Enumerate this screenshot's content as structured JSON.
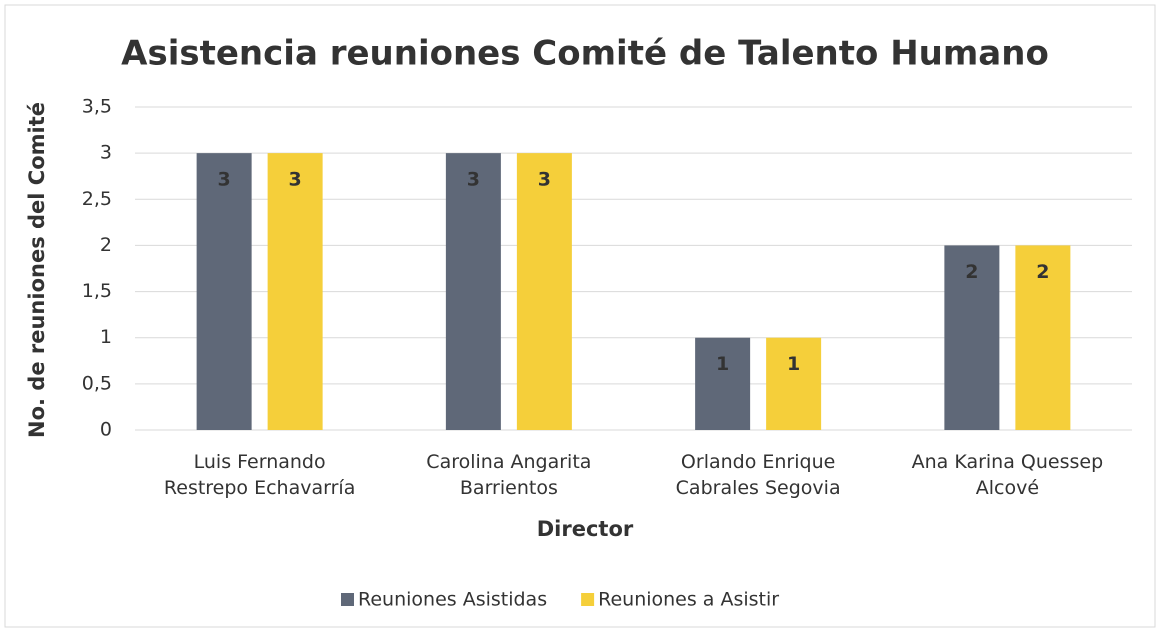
{
  "chart_data": {
    "type": "bar",
    "title": "Asistencia reuniones Comité de Talento Humano",
    "x_label": "Director",
    "y_label": "No. de reuniones del Comité",
    "categories": [
      "Luis Fernando Restrepo Echavarría",
      "Carolina Angarita Barrientos",
      "Orlando Enrique Cabrales Segovia",
      "Ana Karina Quessep Alcové"
    ],
    "series": [
      {
        "name": "Reuniones Asistidas",
        "color": "#5f6878",
        "values": [
          3,
          3,
          1,
          2
        ]
      },
      {
        "name": "Reuniones a Asistir",
        "color": "#f5cf3a",
        "values": [
          3,
          3,
          1,
          2
        ]
      }
    ],
    "ylim": [
      0,
      3.5
    ],
    "yticks": [
      0,
      {
        "value": 0.5,
        "label": "0,5"
      },
      1,
      {
        "value": 1.5,
        "label": "1,5"
      },
      2,
      {
        "value": 2.5,
        "label": "2,5"
      },
      3,
      {
        "value": 3.5,
        "label": "3,5"
      }
    ],
    "grid": true,
    "legend": "bottom"
  }
}
